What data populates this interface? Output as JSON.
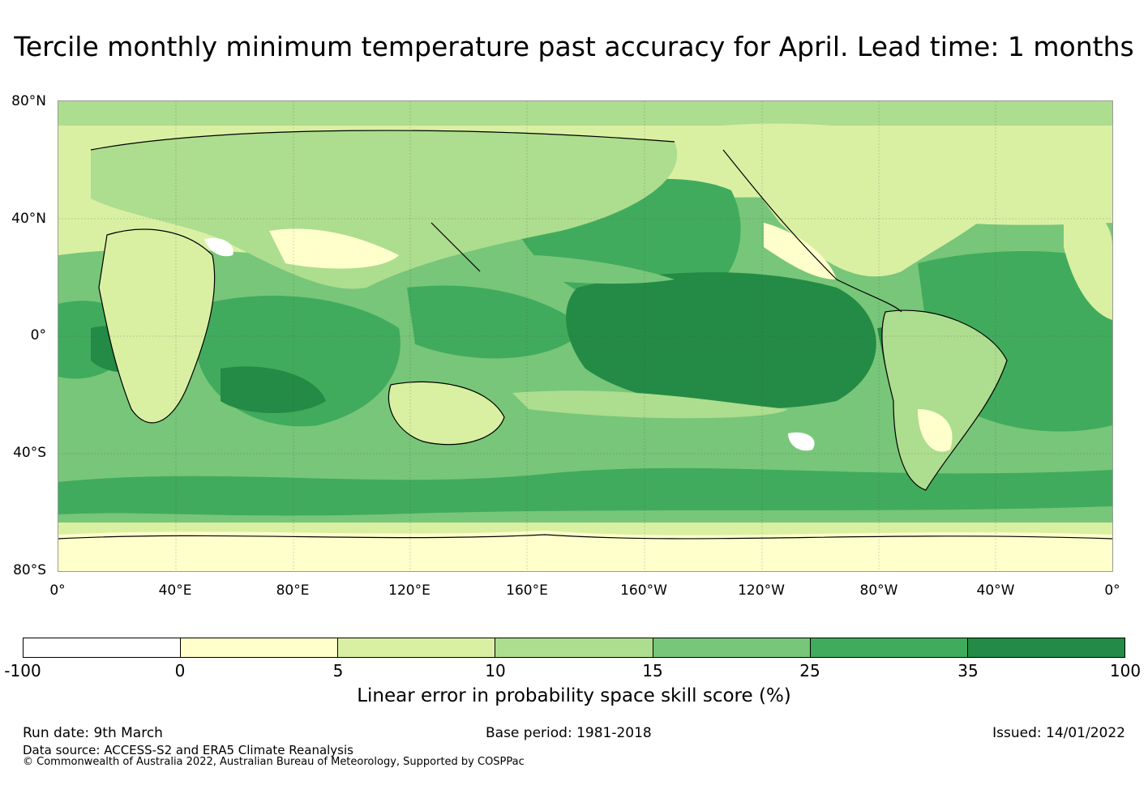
{
  "title": "Tercile monthly minimum temperature past accuracy for April. Lead time: 1 months",
  "map": {
    "lat_labels": [
      "80°N",
      "40°N",
      "0°",
      "40°S",
      "80°S"
    ],
    "lon_labels": [
      "0°",
      "40°E",
      "80°E",
      "120°E",
      "160°E",
      "160°W",
      "120°W",
      "80°W",
      "40°W",
      "0°"
    ],
    "skill_pattern": [
      {
        "region": "Equatorial / central Pacific",
        "category": "35 to 100",
        "color": "#238b45"
      },
      {
        "region": "North Pacific",
        "category": "25 to 35",
        "color": "#41ab5d"
      },
      {
        "region": "Indian Ocean",
        "category": "25 to 35",
        "color": "#41ab5d"
      },
      {
        "region": "Equatorial Atlantic",
        "category": "25 to 35",
        "color": "#41ab5d"
      },
      {
        "region": "Southern Ocean",
        "category": "15 to 25",
        "color": "#78c679"
      },
      {
        "region": "Continents",
        "category": "5 to 15",
        "color": "#d9f0a3"
      },
      {
        "region": "Antarctica",
        "category": "0 to 5",
        "color": "#ffffcc"
      }
    ]
  },
  "colorbar": {
    "ticks": [
      "-100",
      "0",
      "5",
      "10",
      "15",
      "25",
      "35",
      "100"
    ],
    "colors": [
      "#ffffff",
      "#ffffcc",
      "#d9f0a3",
      "#addd8e",
      "#78c679",
      "#41ab5d",
      "#238b45"
    ],
    "label": "Linear error in probability space skill score (%)"
  },
  "footer": {
    "run_date": "Run date: 9th March",
    "base_period": "Base period: 1981-2018",
    "issued": "Issued: 14/01/2022",
    "data_source": "Data source: ACCESS-S2 and ERA5 Climate Reanalysis",
    "copyright": "© Commonwealth of Australia 2022, Australian Bureau of Meteorology, Supported by COSPPac"
  }
}
